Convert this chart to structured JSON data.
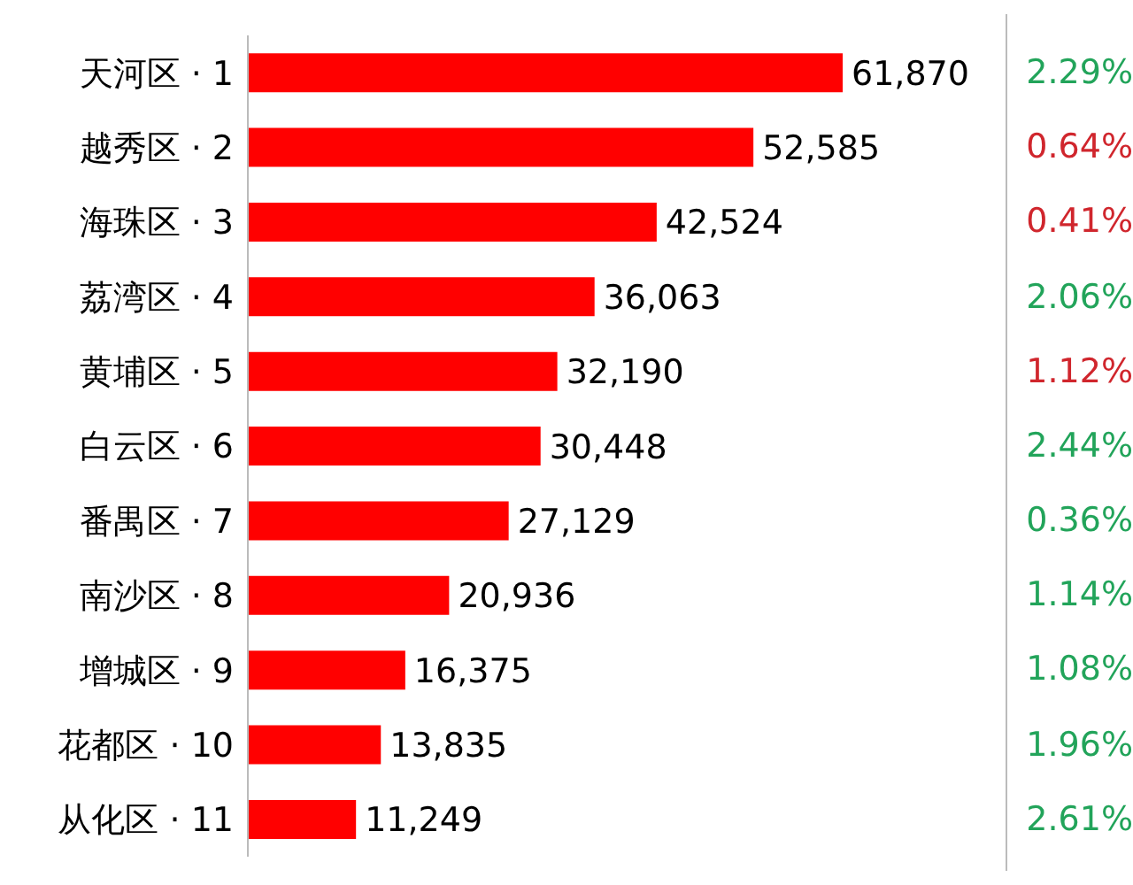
{
  "chart_data": [
    {
      "type": "bar",
      "orientation": "horizontal",
      "categories": [
        "天河区 · 1",
        "越秀区 · 2",
        "海珠区 · 3",
        "荔湾区 · 4",
        "黄埔区 · 5",
        "白云区 · 6",
        "番禺区 · 7",
        "南沙区 · 8",
        "增城区 · 9",
        "花都区 · 10",
        "从化区 · 11"
      ],
      "values": [
        61870,
        52585,
        42524,
        36063,
        32190,
        30448,
        27129,
        20936,
        16375,
        13835,
        11249
      ],
      "value_labels": [
        "61,870",
        "52,585",
        "42,524",
        "36,063",
        "32,190",
        "30,448",
        "27,129",
        "20,936",
        "16,375",
        "13,835",
        "11,249"
      ],
      "color": "#ff0000",
      "tick_labels": "y"
    },
    {
      "type": "other",
      "values": [
        2.29,
        0.64,
        0.41,
        2.06,
        1.12,
        2.44,
        0.36,
        1.14,
        1.08,
        1.96,
        2.61
      ],
      "value_labels": [
        "2.29%",
        "0.64%",
        "0.41%",
        "2.06%",
        "1.12%",
        "2.44%",
        "0.36%",
        "1.14%",
        "1.08%",
        "1.96%",
        "2.61%"
      ],
      "colors": [
        "#22a45a",
        "#d0262d",
        "#d0262d",
        "#22a45a",
        "#d0262d",
        "#22a45a",
        "#22a45a",
        "#22a45a",
        "#22a45a",
        "#22a45a",
        "#22a45a"
      ]
    }
  ]
}
